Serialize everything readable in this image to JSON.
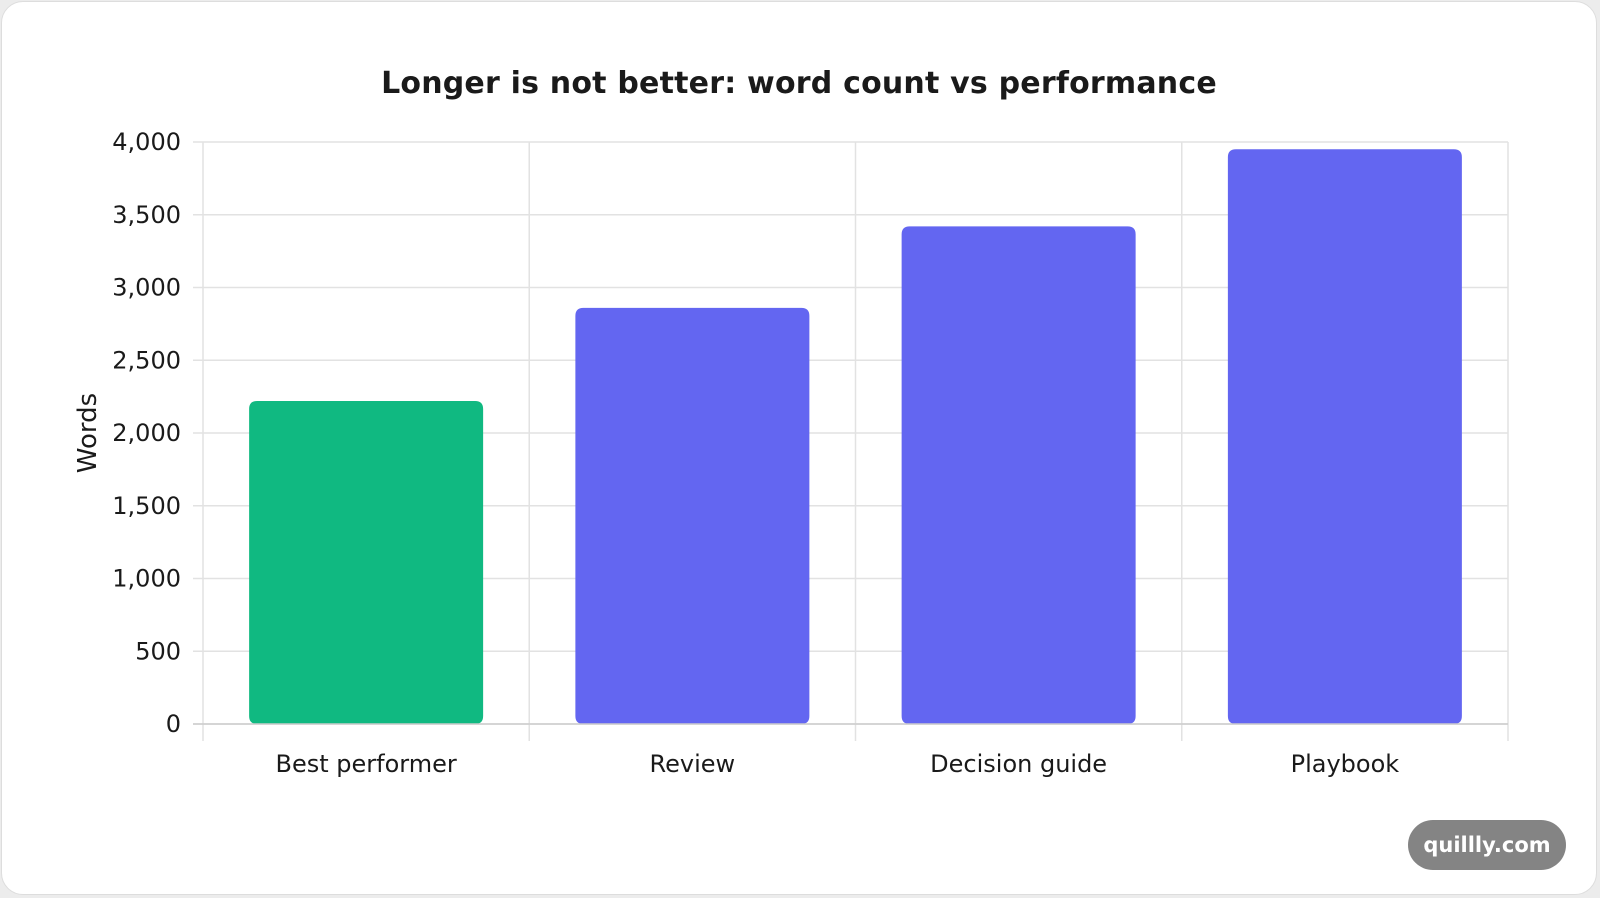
{
  "page": {
    "watermark": "quillly.com"
  },
  "chart_data": {
    "type": "bar",
    "title": "Longer is not better: word count vs performance",
    "xlabel": "",
    "ylabel": "Words",
    "categories": [
      "Best performer",
      "Review",
      "Decision guide",
      "Playbook"
    ],
    "values": [
      2220,
      2860,
      3420,
      3950
    ],
    "ylim": [
      0,
      4000
    ],
    "yticks": [
      0,
      500,
      1000,
      1500,
      2000,
      2500,
      3000,
      3500,
      4000
    ],
    "ytick_labels": [
      "0",
      "500",
      "1,000",
      "1,500",
      "2,000",
      "2,500",
      "3,000",
      "3,500",
      "4,000"
    ],
    "grid": true,
    "legend": "none",
    "colors": {
      "highlight": "#10b981",
      "default": "#6366f1",
      "grid": "#e2e2e2",
      "axis": "#cccccc"
    },
    "highlight_index": 0
  }
}
